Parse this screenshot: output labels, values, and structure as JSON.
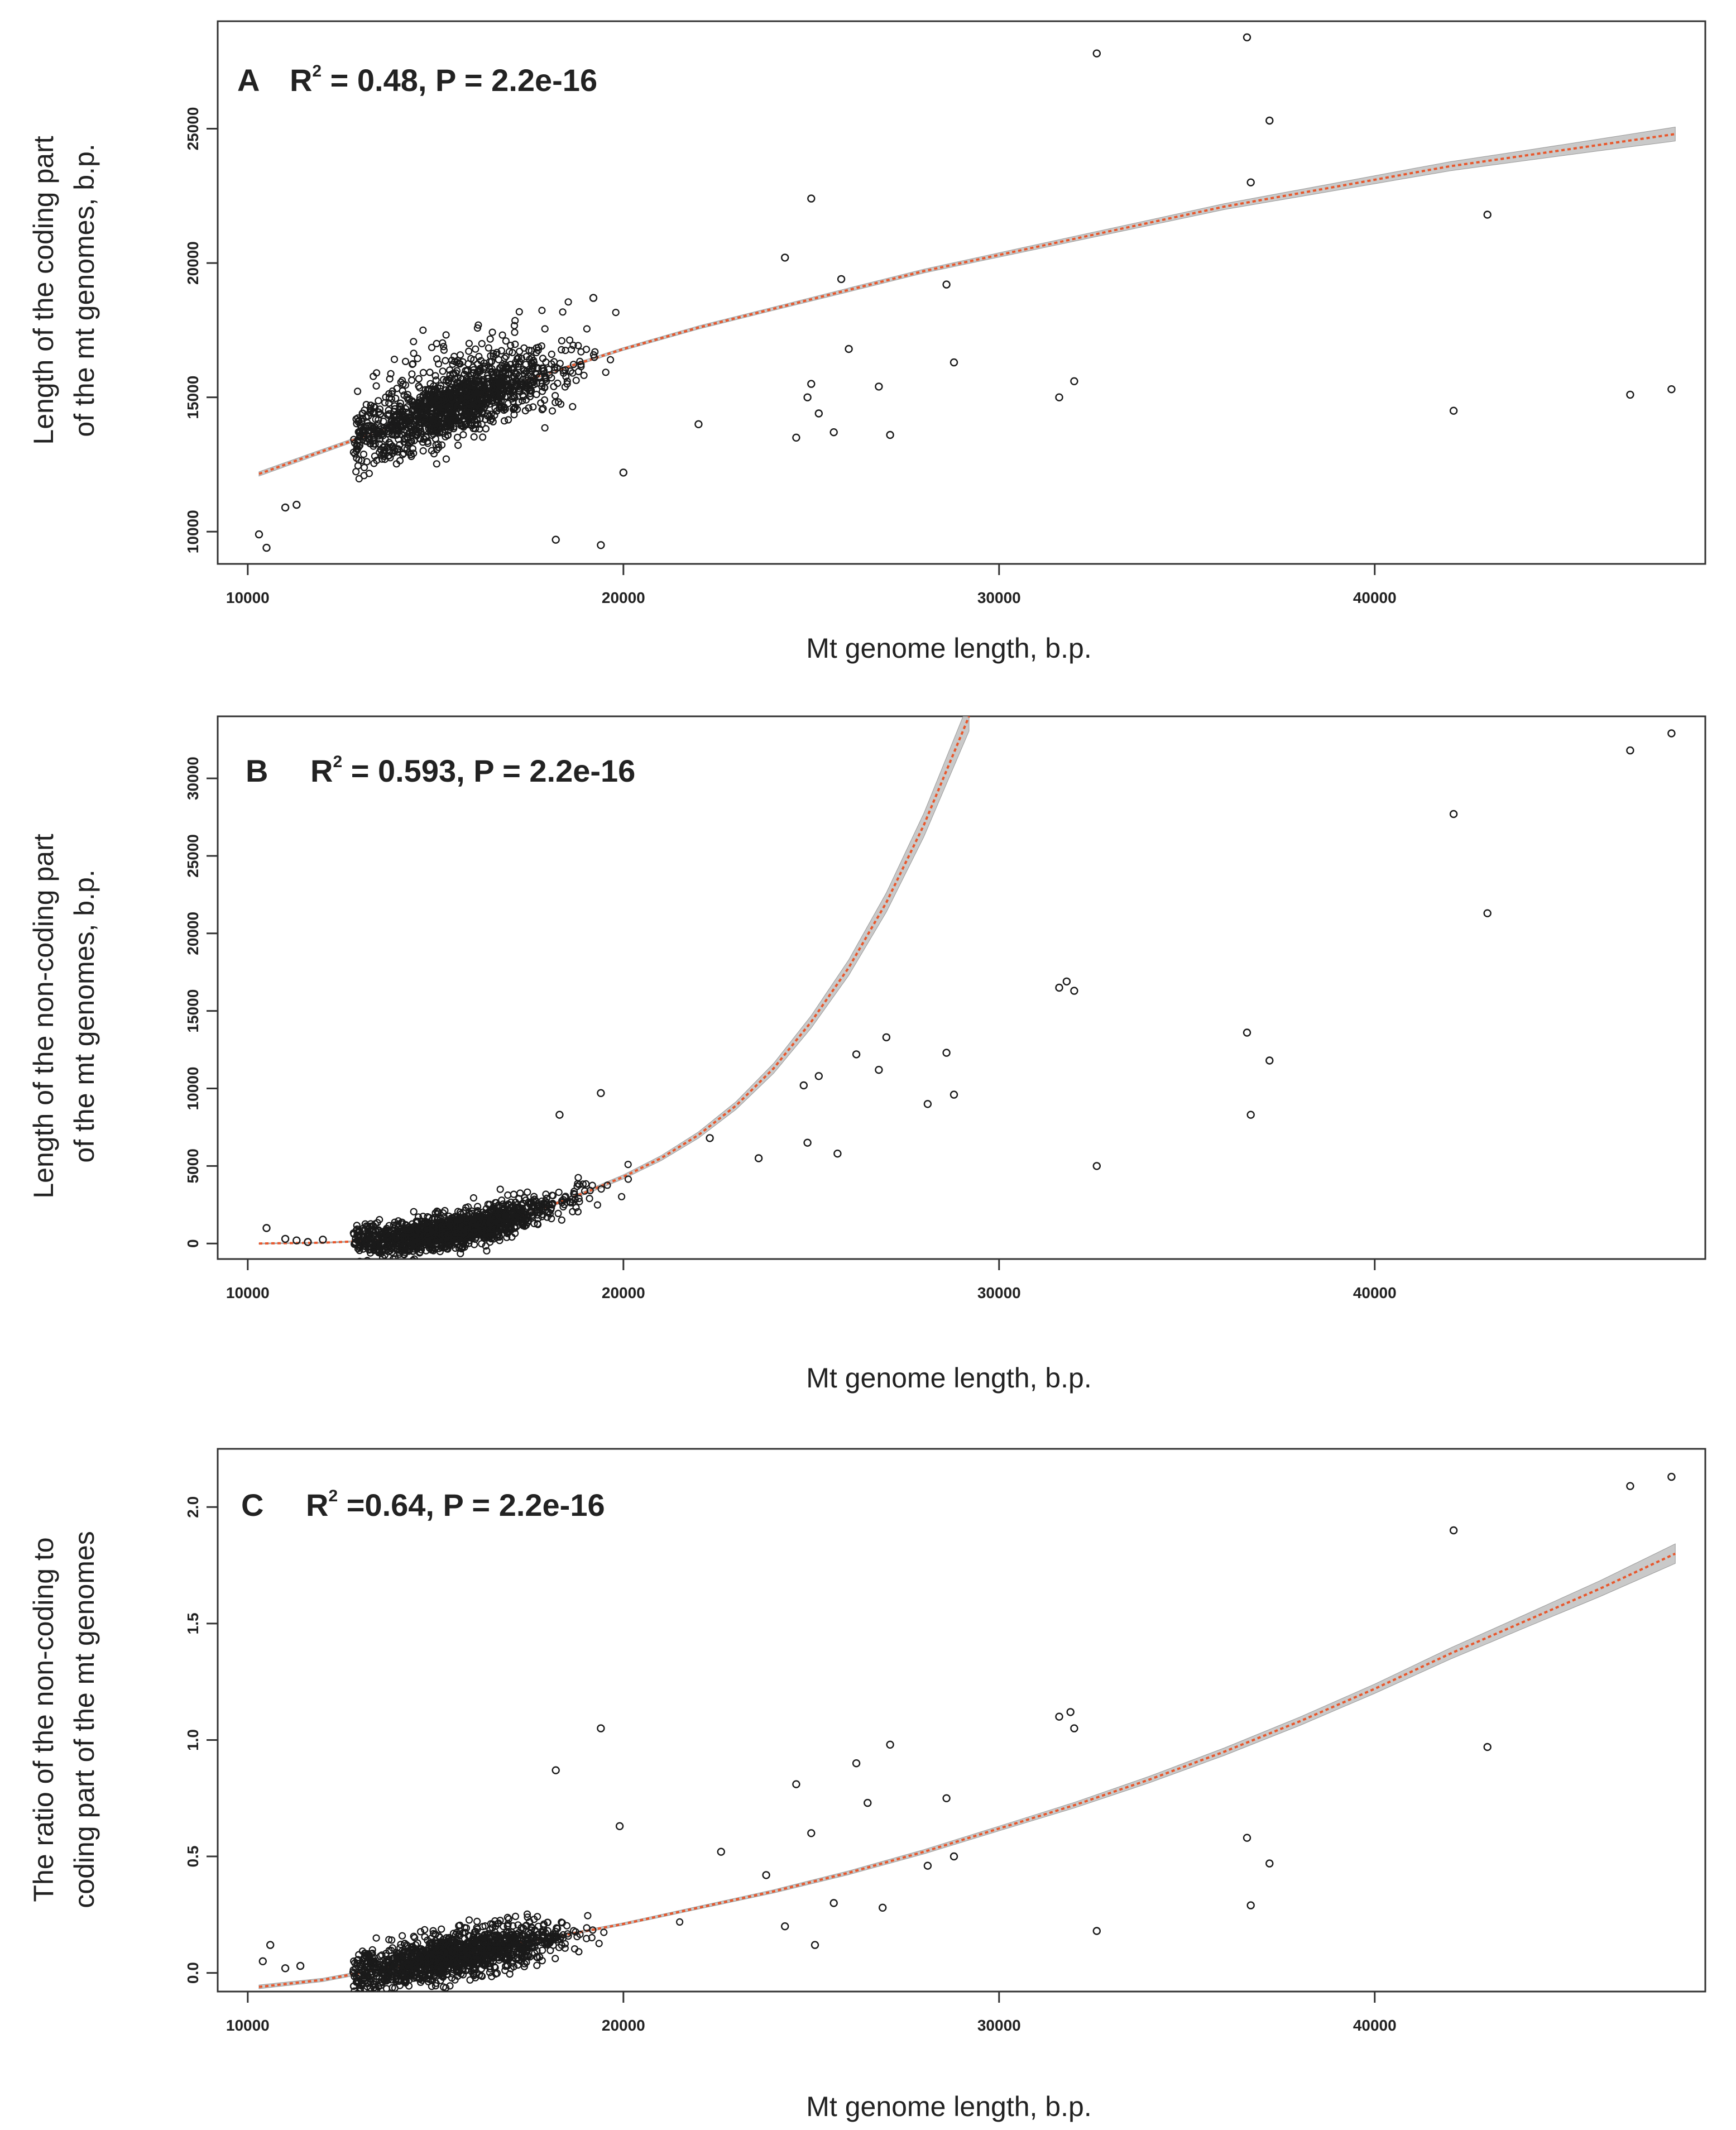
{
  "figure_style": {
    "point_color": "#1a1a1a",
    "fit_color": "#e8572c",
    "ci_band_color": "#bfbfbf",
    "frame_color": "#333333"
  },
  "chart_data": [
    {
      "type": "scatter",
      "panel": "A",
      "title_parts": {
        "letter": "A",
        "r": "R",
        "sup": "2",
        "rest": " = 0.48,  P = 2.2e-16"
      },
      "xlabel": "Mt genome length, b.p.",
      "ylabel_lines": [
        "Length of the coding part",
        "of the mt genomes, b.p."
      ],
      "xlim": [
        9200,
        48800
      ],
      "ylim": [
        8800,
        29000
      ],
      "xticks": [
        10000,
        20000,
        30000,
        40000
      ],
      "xtick_labels": [
        "10000",
        "20000",
        "30000",
        "40000"
      ],
      "yticks": [
        10000,
        15000,
        20000,
        25000
      ],
      "ytick_labels": [
        "10000",
        "15000",
        "20000",
        "25000"
      ],
      "fit": {
        "x": [
          10300,
          12000,
          14000,
          16000,
          18000,
          20000,
          22000,
          24000,
          26000,
          28000,
          30000,
          32000,
          34000,
          36000,
          38000,
          40000,
          42000,
          44000,
          46000,
          48000
        ],
        "y": [
          12150,
          13000,
          14000,
          15000,
          15900,
          16800,
          17600,
          18300,
          19000,
          19700,
          20300,
          20900,
          21500,
          22100,
          22600,
          23100,
          23600,
          24000,
          24400,
          24800
        ],
        "ci_halfwidth": [
          80,
          70,
          60,
          50,
          50,
          50,
          60,
          60,
          70,
          70,
          80,
          90,
          100,
          110,
          130,
          150,
          170,
          190,
          220,
          260
        ]
      },
      "outliers": {
        "x": [
          10300,
          10500,
          11000,
          11300,
          18200,
          19400,
          20000,
          22000,
          24300,
          24600,
          25000,
          25000,
          25200,
          25600,
          25800,
          26000,
          26800,
          27100,
          28600,
          28800,
          31600,
          32000,
          32600,
          36600,
          36700,
          37200,
          42100,
          43000,
          46800,
          47900,
          19200,
          24900
        ],
        "y": [
          9900,
          9400,
          10900,
          11000,
          9700,
          9500,
          12200,
          14000,
          20200,
          13500,
          22400,
          15500,
          14400,
          13700,
          19400,
          16800,
          15400,
          13600,
          19200,
          16300,
          15000,
          15600,
          27800,
          28400,
          23000,
          25300,
          14500,
          21800,
          15100,
          15300,
          18700,
          15000
        ]
      },
      "cloud": {
        "x_min": 12800,
        "x_max": 22500,
        "y_at_center": 15000,
        "spread": 1000
      }
    },
    {
      "type": "scatter",
      "panel": "B",
      "title_parts": {
        "letter": "B",
        "r": "R",
        "sup": "2",
        "rest": " = 0.593,  P = 2.2e-16"
      },
      "xlabel": "Mt genome length, b.p.",
      "ylabel_lines": [
        "Length of the non-coding part",
        "of the mt genomes, b.p."
      ],
      "xlim": [
        9200,
        48800
      ],
      "ylim": [
        -1000,
        34000
      ],
      "xticks": [
        10000,
        20000,
        30000,
        40000
      ],
      "xtick_labels": [
        "10000",
        "20000",
        "30000",
        "40000"
      ],
      "yticks": [
        0,
        5000,
        10000,
        15000,
        20000,
        25000,
        30000
      ],
      "ytick_labels": [
        "0",
        "5000",
        "10000",
        "15000",
        "20000",
        "25000",
        "30000"
      ],
      "fit": {
        "x": [
          10300,
          12000,
          13000,
          14000,
          15000,
          16000,
          17000,
          18000,
          19000,
          20000,
          21000,
          22000,
          23000,
          24000,
          25000,
          26000,
          27000,
          28000,
          28600,
          29200
        ],
        "y": [
          0,
          50,
          150,
          300,
          600,
          1000,
          1600,
          2400,
          3300,
          4300,
          5500,
          7000,
          8900,
          11300,
          14300,
          17800,
          22000,
          27000,
          30500,
          34000
        ],
        "ci_halfwidth": [
          30,
          30,
          40,
          50,
          60,
          70,
          80,
          90,
          110,
          130,
          160,
          200,
          250,
          320,
          400,
          500,
          620,
          760,
          850,
          950
        ]
      },
      "outliers": {
        "x": [
          10500,
          11000,
          11300,
          11600,
          12000,
          18300,
          19400,
          24800,
          24900,
          25200,
          25700,
          26200,
          26800,
          27000,
          28100,
          28600,
          28800,
          31600,
          31800,
          32000,
          32600,
          36600,
          36700,
          37200,
          42100,
          43000,
          46800,
          47900,
          23600,
          22300
        ],
        "y": [
          1000,
          300,
          200,
          100,
          250,
          8300,
          9700,
          10200,
          6500,
          10800,
          5800,
          12200,
          11200,
          13300,
          9000,
          12300,
          9600,
          16500,
          16900,
          16300,
          5000,
          13600,
          8300,
          11800,
          27700,
          21300,
          31800,
          32900,
          5500,
          6800
        ]
      },
      "cloud": {
        "x_min": 12800,
        "x_max": 22500,
        "y_at_center": 1500,
        "spread": 900
      }
    },
    {
      "type": "scatter",
      "panel": "C",
      "title_parts": {
        "letter": "C",
        "r": "R",
        "sup": "2",
        "rest": " =0.64,  P = 2.2e-16"
      },
      "xlabel": "Mt genome length, b.p.",
      "ylabel_lines": [
        "The ratio of the non-coding to",
        "coding part of the mt genomes"
      ],
      "xlim": [
        9200,
        48800
      ],
      "ylim": [
        -0.08,
        2.25
      ],
      "xticks": [
        10000,
        20000,
        30000,
        40000
      ],
      "xtick_labels": [
        "10000",
        "20000",
        "30000",
        "40000"
      ],
      "yticks": [
        0.0,
        0.5,
        1.0,
        1.5,
        2.0
      ],
      "ytick_labels": [
        "0.0",
        "0.5",
        "1.0",
        "1.5",
        "2.0"
      ],
      "fit": {
        "x": [
          10300,
          12000,
          14000,
          16000,
          18000,
          20000,
          22000,
          24000,
          26000,
          28000,
          30000,
          32000,
          34000,
          36000,
          38000,
          40000,
          42000,
          44000,
          46000,
          48000
        ],
        "y": [
          -0.06,
          -0.03,
          0.03,
          0.09,
          0.15,
          0.21,
          0.28,
          0.35,
          0.43,
          0.52,
          0.62,
          0.72,
          0.83,
          0.95,
          1.08,
          1.22,
          1.37,
          1.51,
          1.65,
          1.8
        ],
        "ci_halfwidth": [
          0.008,
          0.007,
          0.006,
          0.005,
          0.005,
          0.005,
          0.006,
          0.007,
          0.008,
          0.009,
          0.01,
          0.012,
          0.014,
          0.016,
          0.018,
          0.02,
          0.024,
          0.028,
          0.034,
          0.042
        ]
      },
      "outliers": {
        "x": [
          10400,
          10600,
          11000,
          11400,
          18200,
          19400,
          19900,
          24300,
          24600,
          25000,
          25100,
          25600,
          26200,
          26500,
          26900,
          27100,
          28100,
          28600,
          28800,
          31600,
          31900,
          32000,
          32600,
          36600,
          36700,
          37200,
          42100,
          43000,
          46800,
          47900,
          22600,
          23800
        ],
        "y": [
          0.05,
          0.12,
          0.02,
          0.03,
          0.87,
          1.05,
          0.63,
          0.2,
          0.81,
          0.6,
          0.12,
          0.3,
          0.9,
          0.73,
          0.28,
          0.98,
          0.46,
          0.75,
          0.5,
          1.1,
          1.12,
          1.05,
          0.18,
          0.58,
          0.29,
          0.47,
          1.9,
          0.97,
          2.09,
          2.13,
          0.52,
          0.42
        ]
      },
      "cloud": {
        "x_min": 12800,
        "x_max": 22500,
        "y_at_center": 0.1,
        "spread": 0.08
      }
    }
  ]
}
